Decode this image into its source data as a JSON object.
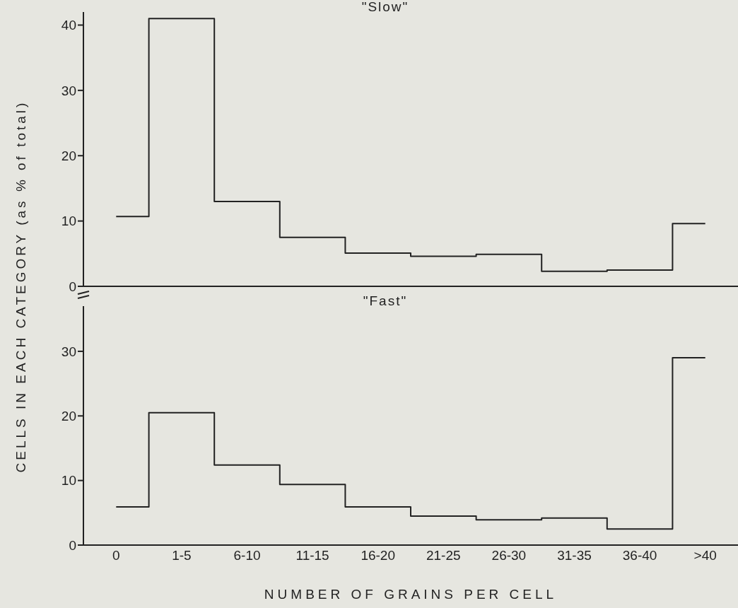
{
  "chart_data": [
    {
      "type": "step",
      "title": "\"Slow\"",
      "ylabel": "CELLS IN EACH CATEGORY (as % of total)",
      "values": [
        10.7,
        41.0,
        13.0,
        7.5,
        5.1,
        4.6,
        4.9,
        2.3,
        2.5,
        9.6
      ],
      "color": "#222222",
      "ylim": [
        0,
        42
      ],
      "yticks": [
        0,
        10,
        20,
        30,
        40
      ],
      "tick_labels": "y"
    },
    {
      "type": "step",
      "title": "\"Fast\"",
      "xlabel": "NUMBER OF GRAINS PER CELL",
      "categories": [
        "0",
        "1-5",
        "6-10",
        "11-15",
        "16-20",
        "21-25",
        "26-30",
        "31-35",
        "36-40",
        ">40"
      ],
      "values": [
        5.9,
        20.5,
        12.4,
        9.4,
        5.9,
        4.5,
        3.9,
        4.2,
        2.5,
        29.0
      ],
      "color": "#222222",
      "ylim": [
        0,
        37
      ],
      "yticks": [
        0,
        10,
        20,
        30
      ]
    }
  ]
}
